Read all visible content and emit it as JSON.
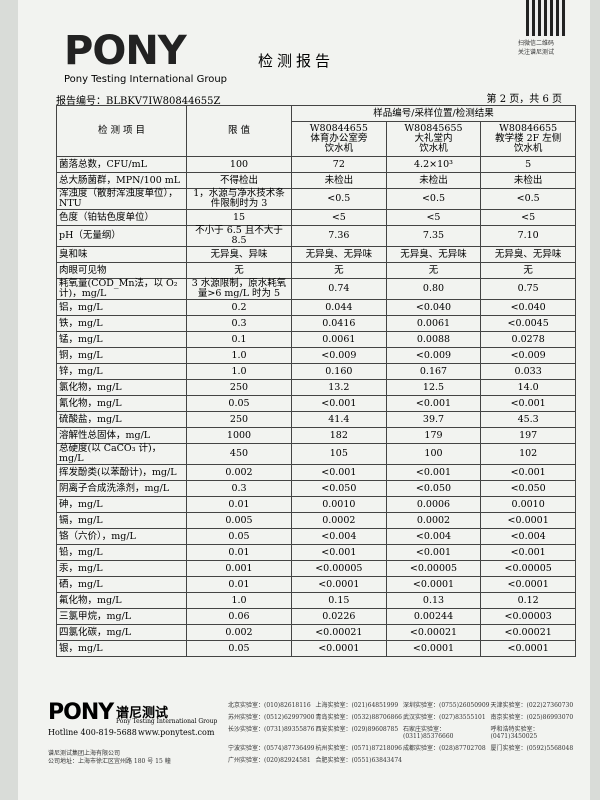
{
  "header": {
    "logo": "PONY",
    "group": "Pony Testing International Group",
    "title": "检测报告",
    "qr_caption": [
      "扫微信二维码",
      "关注谱尼测试"
    ],
    "report_no": "报告编号：BLBKV7IW80844655Z",
    "page": "第 2 页，共 6 页"
  },
  "table": {
    "col_item": "检 测 项 目",
    "col_limit": "限 值",
    "col_samples": "样品编号/采样位置/检测结果",
    "samples": [
      [
        "W80844655",
        "体育办公室旁",
        "饮水机"
      ],
      [
        "W80845655",
        "大礼堂内",
        "饮水机"
      ],
      [
        "W80846655",
        "教学楼 2F 左侧",
        "饮水机"
      ]
    ],
    "rows": [
      [
        "菌落总数，CFU/mL",
        "100",
        "72",
        "4.2×10³",
        "5"
      ],
      [
        "总大肠菌群，MPN/100 mL",
        "不得检出",
        "未检出",
        "未检出",
        "未检出"
      ],
      [
        "浑浊度（散射浑浊度单位），NTU",
        "1，水源与净水技术条件限制时为 3",
        "<0.5",
        "<0.5",
        "<0.5"
      ],
      [
        "色度（铂钴色度单位）",
        "15",
        "<5",
        "<5",
        "<5"
      ],
      [
        "pH（无量纲）",
        "不小于 6.5 且不大于 8.5",
        "7.36",
        "7.35",
        "7.10"
      ],
      [
        "臭和味",
        "无异臭、异味",
        "无异臭、无异味",
        "无异臭、无异味",
        "无异臭、无异味"
      ],
      [
        "肉眼可见物",
        "无",
        "无",
        "无",
        "无"
      ],
      [
        "耗氧量(COD_Mn法，以 O₂计)，mg/L",
        "3 水源限制，原水耗氧量>6 mg/L 时为 5",
        "0.74",
        "0.80",
        "0.75"
      ],
      [
        "铝，mg/L",
        "0.2",
        "0.044",
        "<0.040",
        "<0.040"
      ],
      [
        "铁，mg/L",
        "0.3",
        "0.0416",
        "0.0061",
        "<0.0045"
      ],
      [
        "锰，mg/L",
        "0.1",
        "0.0061",
        "0.0088",
        "0.0278"
      ],
      [
        "铜，mg/L",
        "1.0",
        "<0.009",
        "<0.009",
        "<0.009"
      ],
      [
        "锌，mg/L",
        "1.0",
        "0.160",
        "0.167",
        "0.033"
      ],
      [
        "氯化物，mg/L",
        "250",
        "13.2",
        "12.5",
        "14.0"
      ],
      [
        "氰化物，mg/L",
        "0.05",
        "<0.001",
        "<0.001",
        "<0.001"
      ],
      [
        "硫酸盐，mg/L",
        "250",
        "41.4",
        "39.7",
        "45.3"
      ],
      [
        "溶解性总固体，mg/L",
        "1000",
        "182",
        "179",
        "197"
      ],
      [
        "总硬度(以 CaCO₃ 计)，mg/L",
        "450",
        "105",
        "100",
        "102"
      ],
      [
        "挥发酚类(以苯酚计)，mg/L",
        "0.002",
        "<0.001",
        "<0.001",
        "<0.001"
      ],
      [
        "阴离子合成洗涤剂，mg/L",
        "0.3",
        "<0.050",
        "<0.050",
        "<0.050"
      ],
      [
        "砷，mg/L",
        "0.01",
        "0.0010",
        "0.0006",
        "0.0010"
      ],
      [
        "镉，mg/L",
        "0.005",
        "0.0002",
        "0.0002",
        "<0.0001"
      ],
      [
        "铬（六价），mg/L",
        "0.05",
        "<0.004",
        "<0.004",
        "<0.004"
      ],
      [
        "铅，mg/L",
        "0.01",
        "<0.001",
        "<0.001",
        "<0.001"
      ],
      [
        "汞，mg/L",
        "0.001",
        "<0.00005",
        "<0.00005",
        "<0.00005"
      ],
      [
        "硒，mg/L",
        "0.01",
        "<0.0001",
        "<0.0001",
        "<0.0001"
      ],
      [
        "氟化物，mg/L",
        "1.0",
        "0.15",
        "0.13",
        "0.12"
      ],
      [
        "三氯甲烷，mg/L",
        "0.06",
        "0.0226",
        "0.00244",
        "<0.00003"
      ],
      [
        "四氯化碳，mg/L",
        "0.002",
        "<0.00021",
        "<0.00021",
        "<0.00021"
      ],
      [
        "银，mg/L",
        "0.05",
        "<0.0001",
        "<0.0001",
        "<0.0001"
      ]
    ]
  },
  "footer": {
    "logo": "PONY",
    "brand": "谱尼测试",
    "group": "Pony Testing International Group",
    "hotline": "Hotline 400-819-5688",
    "website": "www.ponytest.com",
    "company": "谱尼测试集团上海有限公司",
    "address": "公司地址：上海市徐汇区宜州路 180 号 15 幢",
    "labs": [
      "北京实验室：(010)82618116",
      "上海实验室：(021)64851999",
      "深圳实验室：(0755)26050909",
      "天津实验室：(022)27360730",
      "苏州实验室：(0512)62997900",
      "青岛实验室：(0532)88706866",
      "武汉实验室：(027)83555101",
      "南京实验室：(025)86993070",
      "长沙实验室：(0731)89355876",
      "西安实验室：(029)89608785",
      "石家庄实验室：(0311)85376660",
      "呼和浩特实验室：(0471)3450025",
      "宁波实验室：(0574)87736499",
      "杭州实验室：(0571)87218096",
      "成都实验室：(028)87702708",
      "厦门实验室：(0592)5568048",
      "广州实验室：(020)82924581",
      "合肥实验室：(0551)63843474"
    ]
  }
}
